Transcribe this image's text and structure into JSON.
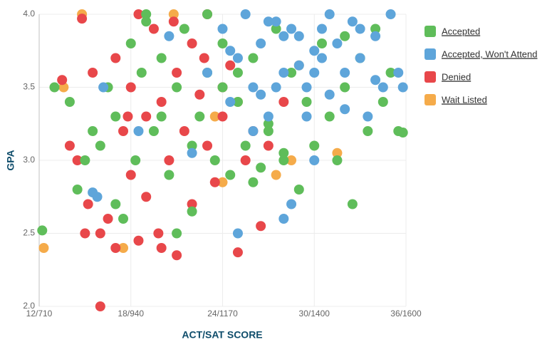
{
  "chart_data": {
    "type": "scatter",
    "x_label": "ACT/SAT SCORE",
    "y_label": "GPA",
    "xlim": [
      12,
      36
    ],
    "ylim": [
      2,
      4
    ],
    "xticks": [
      {
        "value": 12,
        "label": "12/710"
      },
      {
        "value": 18,
        "label": "18/940"
      },
      {
        "value": 24,
        "label": "24/1170"
      },
      {
        "value": 30,
        "label": "30/1400"
      },
      {
        "value": 36,
        "label": "36/1600"
      }
    ],
    "yticks": [
      {
        "value": 2,
        "label": "2.0"
      },
      {
        "value": 2.5,
        "label": "2.5"
      },
      {
        "value": 3,
        "label": "3.0"
      },
      {
        "value": 3.5,
        "label": "3.5"
      },
      {
        "value": 4,
        "label": "4.0"
      }
    ],
    "grid": true,
    "legend": "right",
    "series": [
      {
        "name": "Accepted",
        "color": "#5fbd5a",
        "x": [
          12.2,
          13,
          14,
          14.5,
          15,
          15.5,
          16,
          16.5,
          17,
          17.5,
          18,
          18.3,
          18.7,
          19,
          19.5,
          20,
          20.5,
          21,
          21.5,
          22,
          22.5,
          23,
          23,
          23.5,
          24,
          24.5,
          25,
          25.5,
          26,
          26.5,
          27,
          27.5,
          28,
          28.5,
          29,
          29.5,
          30,
          30.5,
          31,
          31.5,
          32,
          32.5,
          33,
          33.5,
          34,
          34.5,
          35,
          35.5,
          35.8,
          20,
          21,
          22,
          24,
          26,
          28,
          17,
          19,
          25,
          27,
          32
        ],
        "values": [
          2.52,
          3.5,
          3.4,
          2.8,
          3.0,
          3.2,
          3.1,
          3.5,
          3.3,
          2.6,
          3.8,
          3.0,
          3.6,
          4.0,
          3.2,
          3.7,
          2.9,
          3.5,
          3.9,
          2.65,
          3.3,
          4.0,
          3.6,
          3.0,
          3.8,
          2.9,
          3.4,
          3.1,
          3.7,
          2.95,
          3.2,
          3.9,
          3.0,
          3.6,
          2.8,
          3.4,
          3.1,
          3.8,
          3.3,
          3.0,
          3.5,
          2.7,
          3.7,
          3.2,
          3.9,
          3.4,
          3.6,
          3.2,
          3.19,
          3.3,
          2.5,
          3.1,
          3.5,
          2.85,
          3.05,
          2.7,
          3.95,
          3.6,
          3.25,
          3.85
        ]
      },
      {
        "name": "Accepted, Won't Attend",
        "color": "#5ea5da",
        "x": [
          15.5,
          15.8,
          16.2,
          18.5,
          20.5,
          22,
          23,
          24,
          24.5,
          25,
          25.5,
          26,
          26.5,
          27,
          27.5,
          28,
          28.5,
          29,
          29.5,
          30,
          30.5,
          31,
          31.5,
          32,
          32.5,
          33,
          33.5,
          34,
          34.5,
          35,
          35.5,
          35.8,
          25,
          26,
          27,
          28,
          29,
          30,
          31,
          32,
          33,
          34,
          24.5,
          27.5,
          28.5,
          29.5,
          30.5,
          26.5,
          28,
          30
        ],
        "values": [
          2.78,
          2.75,
          3.5,
          3.2,
          3.85,
          3.05,
          3.6,
          3.9,
          3.4,
          3.7,
          4.0,
          3.5,
          3.8,
          3.3,
          3.95,
          3.6,
          2.7,
          3.85,
          3.5,
          3.75,
          3.9,
          3.45,
          3.8,
          3.6,
          3.95,
          3.7,
          3.3,
          3.85,
          3.5,
          4.0,
          3.6,
          3.5,
          2.5,
          3.2,
          3.95,
          2.6,
          3.65,
          3.0,
          4.0,
          3.35,
          3.9,
          3.55,
          3.75,
          3.5,
          3.9,
          3.3,
          3.7,
          3.45,
          3.85,
          3.6
        ]
      },
      {
        "name": "Denied",
        "color": "#e8474a",
        "x": [
          13.5,
          14,
          14.5,
          15,
          15.5,
          16,
          16.5,
          17,
          17,
          17.5,
          18,
          18,
          18.5,
          18.5,
          19,
          19,
          19.5,
          20,
          20,
          20.5,
          21,
          21,
          21.5,
          22,
          22,
          22.5,
          23,
          23,
          23.5,
          24,
          24,
          24.5,
          25,
          25.5,
          26,
          26.5,
          27,
          16,
          15.2,
          20.8,
          22.8,
          19.8,
          17.8,
          28,
          14.8
        ],
        "values": [
          3.55,
          3.1,
          3.0,
          2.5,
          3.6,
          2.0,
          2.6,
          3.7,
          2.4,
          3.2,
          3.5,
          2.9,
          4.0,
          2.45,
          3.3,
          2.75,
          3.9,
          3.4,
          2.4,
          3.0,
          3.6,
          2.35,
          3.2,
          3.8,
          2.7,
          3.45,
          3.1,
          4.0,
          2.85,
          3.5,
          3.3,
          3.65,
          2.37,
          3.0,
          3.2,
          2.55,
          3.1,
          2.5,
          2.7,
          3.95,
          3.7,
          2.5,
          3.3,
          3.4,
          3.97
        ]
      },
      {
        "name": "Wait Listed",
        "color": "#f5ab4a",
        "x": [
          12.3,
          13.6,
          14.8,
          17.5,
          20.8,
          23.5,
          25,
          27.5,
          28.5,
          31.5,
          24,
          29
        ],
        "values": [
          2.4,
          3.5,
          4.0,
          2.4,
          4.0,
          3.3,
          3.4,
          2.9,
          3.0,
          3.05,
          2.85,
          3.65
        ]
      }
    ]
  }
}
